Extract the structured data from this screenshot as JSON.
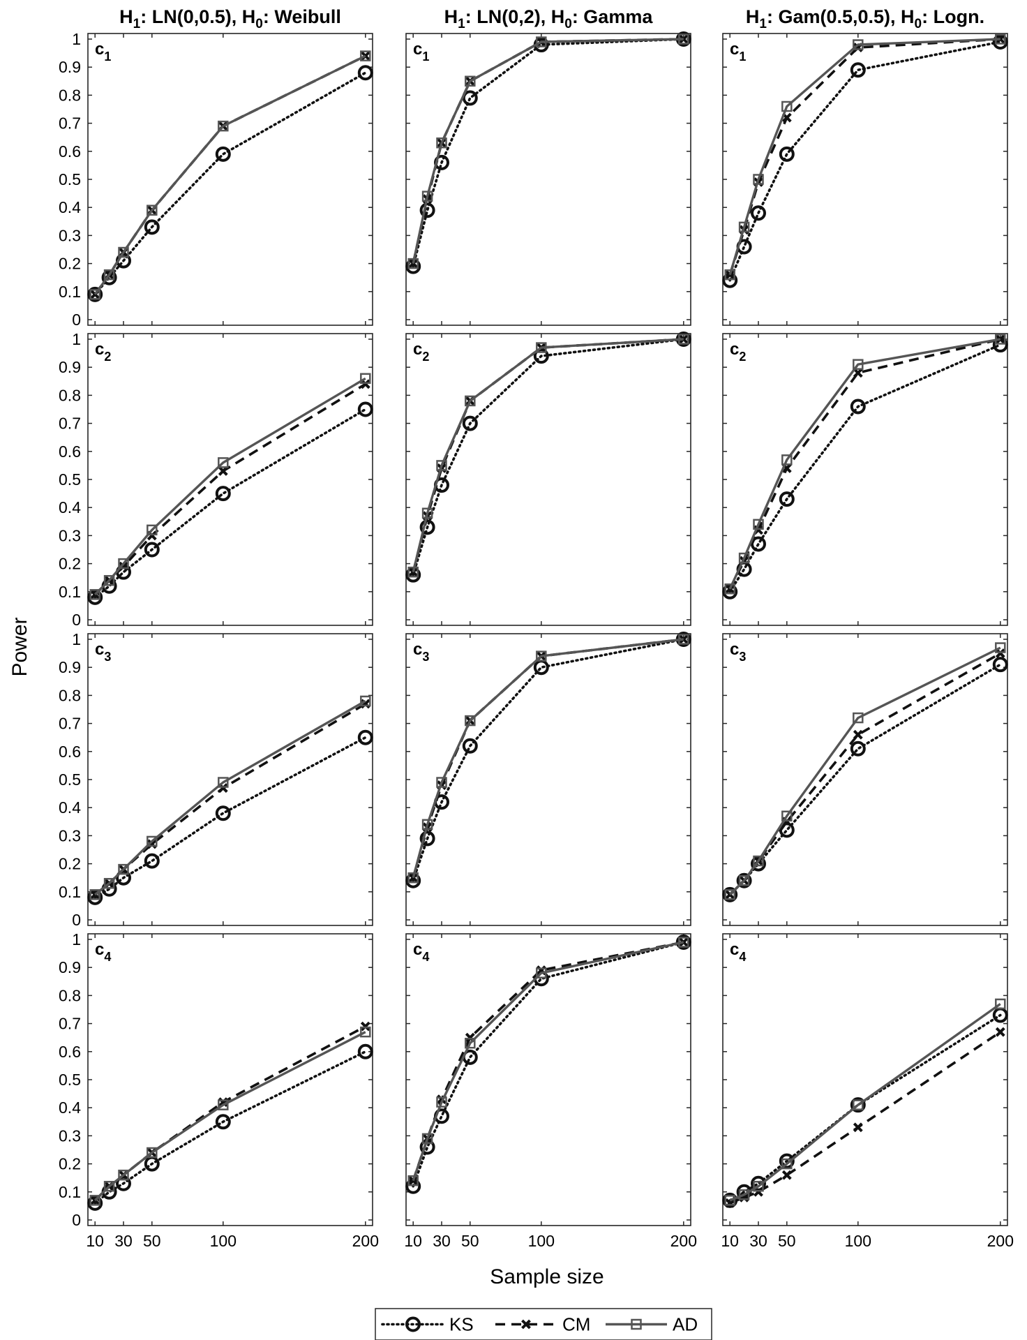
{
  "chart_data": {
    "type": "line",
    "x": [
      10,
      20,
      30,
      50,
      100,
      200
    ],
    "xticks": [
      10,
      30,
      50,
      100,
      200
    ],
    "xtick_labels": [
      "10",
      "30",
      "50",
      "100",
      "200"
    ],
    "xlim": [
      5,
      205
    ],
    "ylim": [
      0,
      1
    ],
    "yticks": [
      "0",
      "0.1",
      "0.2",
      "0.3",
      "0.4",
      "0.5",
      "0.6",
      "0.7",
      "0.8",
      "0.9",
      "1"
    ],
    "xlabel": "Sample size",
    "ylabel": "Power",
    "grid": false,
    "legend_position": "bottom-center",
    "series_styles": [
      {
        "name": "KS",
        "marker": "circle",
        "line": "dotted",
        "color": "#111111"
      },
      {
        "name": "CM",
        "marker": "x",
        "line": "dashed",
        "color": "#111111"
      },
      {
        "name": "AD",
        "marker": "square",
        "line": "solid",
        "color": "#555555"
      }
    ],
    "columns": [
      {
        "h1": "LN(0,0.5)",
        "h0": "Weibull"
      },
      {
        "h1": "LN(0,2)",
        "h0": "Gamma"
      },
      {
        "h1": "Gam(0.5,0.5)",
        "h0": "Logn."
      }
    ],
    "rows": [
      {
        "label": "c",
        "sub": "1"
      },
      {
        "label": "c",
        "sub": "2"
      },
      {
        "label": "c",
        "sub": "3"
      },
      {
        "label": "c",
        "sub": "4"
      }
    ],
    "panels": [
      [
        {
          "KS": [
            0.09,
            0.15,
            0.21,
            0.33,
            0.59,
            0.88
          ],
          "CM": [
            0.09,
            0.16,
            0.24,
            0.39,
            0.69,
            0.94
          ],
          "AD": [
            0.09,
            0.16,
            0.24,
            0.39,
            0.69,
            0.94
          ]
        },
        {
          "KS": [
            0.19,
            0.39,
            0.56,
            0.79,
            0.98,
            1.0
          ],
          "CM": [
            0.2,
            0.43,
            0.63,
            0.85,
            0.99,
            1.0
          ],
          "AD": [
            0.2,
            0.44,
            0.63,
            0.85,
            0.99,
            1.0
          ]
        },
        {
          "KS": [
            0.14,
            0.26,
            0.38,
            0.59,
            0.89,
            0.99
          ],
          "CM": [
            0.16,
            0.32,
            0.49,
            0.72,
            0.97,
            1.0
          ],
          "AD": [
            0.16,
            0.33,
            0.5,
            0.76,
            0.98,
            1.0
          ]
        }
      ],
      [
        {
          "KS": [
            0.08,
            0.12,
            0.17,
            0.25,
            0.45,
            0.75
          ],
          "CM": [
            0.09,
            0.14,
            0.19,
            0.3,
            0.53,
            0.84
          ],
          "AD": [
            0.09,
            0.14,
            0.2,
            0.32,
            0.56,
            0.86
          ]
        },
        {
          "KS": [
            0.16,
            0.33,
            0.48,
            0.7,
            0.94,
            1.0
          ],
          "CM": [
            0.17,
            0.37,
            0.54,
            0.78,
            0.97,
            1.0
          ],
          "AD": [
            0.17,
            0.38,
            0.55,
            0.78,
            0.97,
            1.0
          ]
        },
        {
          "KS": [
            0.1,
            0.18,
            0.27,
            0.43,
            0.76,
            0.98
          ],
          "CM": [
            0.11,
            0.21,
            0.32,
            0.54,
            0.88,
            1.0
          ],
          "AD": [
            0.11,
            0.22,
            0.34,
            0.57,
            0.91,
            1.0
          ]
        }
      ],
      [
        {
          "KS": [
            0.08,
            0.11,
            0.15,
            0.21,
            0.38,
            0.65
          ],
          "CM": [
            0.09,
            0.13,
            0.18,
            0.27,
            0.47,
            0.77
          ],
          "AD": [
            0.09,
            0.13,
            0.18,
            0.28,
            0.49,
            0.78
          ]
        },
        {
          "KS": [
            0.14,
            0.29,
            0.42,
            0.62,
            0.9,
            1.0
          ],
          "CM": [
            0.15,
            0.33,
            0.48,
            0.71,
            0.94,
            1.0
          ],
          "AD": [
            0.15,
            0.34,
            0.49,
            0.71,
            0.94,
            1.0
          ]
        },
        {
          "KS": [
            0.09,
            0.14,
            0.2,
            0.32,
            0.61,
            0.91
          ],
          "CM": [
            0.09,
            0.14,
            0.21,
            0.35,
            0.66,
            0.95
          ],
          "AD": [
            0.09,
            0.14,
            0.21,
            0.37,
            0.72,
            0.97
          ]
        }
      ],
      [
        {
          "KS": [
            0.06,
            0.1,
            0.13,
            0.2,
            0.35,
            0.6
          ],
          "CM": [
            0.07,
            0.12,
            0.16,
            0.24,
            0.42,
            0.69
          ],
          "AD": [
            0.07,
            0.12,
            0.16,
            0.24,
            0.41,
            0.67
          ]
        },
        {
          "KS": [
            0.12,
            0.26,
            0.37,
            0.58,
            0.86,
            0.99
          ],
          "CM": [
            0.14,
            0.29,
            0.43,
            0.65,
            0.89,
            0.99
          ],
          "AD": [
            0.14,
            0.29,
            0.42,
            0.63,
            0.88,
            0.99
          ]
        },
        {
          "KS": [
            0.07,
            0.1,
            0.13,
            0.21,
            0.41,
            0.73
          ],
          "CM": [
            0.06,
            0.08,
            0.1,
            0.16,
            0.33,
            0.67
          ],
          "AD": [
            0.07,
            0.09,
            0.12,
            0.2,
            0.41,
            0.77
          ]
        }
      ]
    ]
  }
}
